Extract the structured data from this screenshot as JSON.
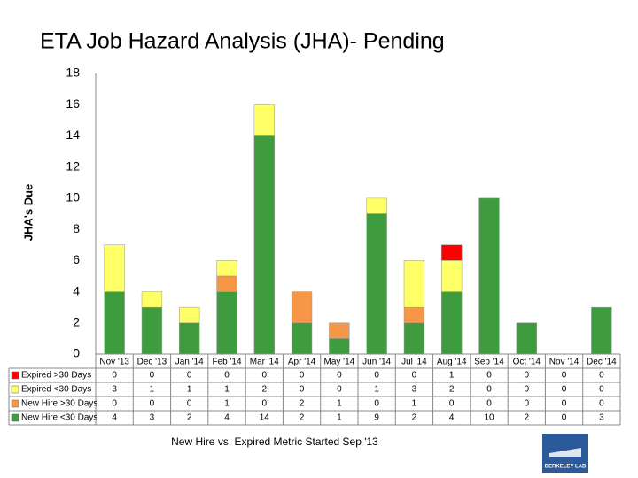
{
  "chart_data": {
    "type": "stacked_bar",
    "title": "ETA Job Hazard Analysis (JHA)- Pending",
    "y_label": "JHA's Due",
    "annotation": "New Hire vs. Expired Metric Started Sep '13",
    "categories": [
      "Nov '13",
      "Dec '13",
      "Jan '14",
      "Feb '14",
      "Mar '14",
      "Apr '14",
      "May '14",
      "Jun '14",
      "Jul '14",
      "Aug '14",
      "Sep '14",
      "Oct '14",
      "Nov '14",
      "Dec '14"
    ],
    "series": [
      {
        "name": "Expired >30 Days",
        "color": "#ff0000",
        "values": [
          0,
          0,
          0,
          0,
          0,
          0,
          0,
          0,
          0,
          1,
          0,
          0,
          0,
          0
        ]
      },
      {
        "name": "Expired <30 Days",
        "color": "#ffff66",
        "values": [
          3,
          1,
          1,
          1,
          2,
          0,
          0,
          1,
          3,
          2,
          0,
          0,
          0,
          0
        ]
      },
      {
        "name": "New Hire >30 Days",
        "color": "#f79646",
        "values": [
          0,
          0,
          0,
          1,
          0,
          2,
          1,
          0,
          1,
          0,
          0,
          0,
          0,
          0
        ]
      },
      {
        "name": "New Hire <30 Days",
        "color": "#3e9c3e",
        "values": [
          4,
          3,
          2,
          4,
          14,
          2,
          1,
          9,
          2,
          4,
          10,
          2,
          0,
          3
        ]
      }
    ],
    "ylim": [
      0,
      18
    ],
    "yticks": [
      0,
      2,
      4,
      6,
      8,
      10,
      12,
      14,
      16,
      18
    ],
    "grid": false
  },
  "logo": "BERKELEY LAB"
}
